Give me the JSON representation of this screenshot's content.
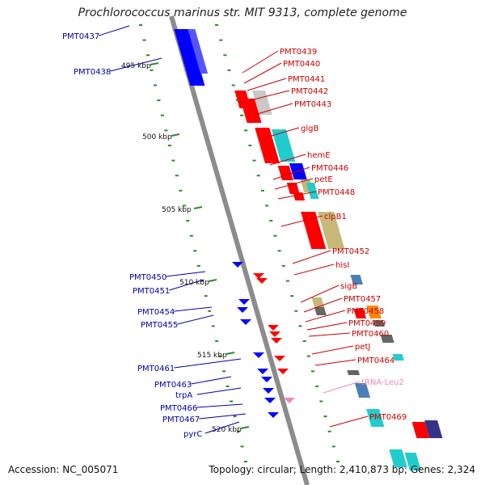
{
  "title": "Prochlorococcus marinus str. MIT 9313, complete genome",
  "accession": "Accession: NC_005071",
  "summary": "Topology: circular; Length: 2,410,873 bp; Genes: 2,324",
  "colors": {
    "backbone": "#8c8c8c",
    "forward": "#ff0000",
    "reverse": "#0000ff",
    "forward_label": "#cc0000",
    "reverse_label": "#0000aa",
    "rna_label": "#ee88bb",
    "tick_green": "#2a8a2a",
    "cyan": "#22cccc",
    "khaki": "#c8b878",
    "grey": "#666666",
    "steel": "#4a7fb5"
  },
  "ticks": [
    {
      "text": "495 kbp"
    },
    {
      "text": "500 kbp"
    },
    {
      "text": "505 kbp"
    },
    {
      "text": "510 kbp"
    },
    {
      "text": "515 kbp"
    },
    {
      "text": "520 kbp"
    }
  ],
  "labels_right": [
    {
      "text": "PMT0439",
      "kind": "cds"
    },
    {
      "text": "PMT0440",
      "kind": "cds"
    },
    {
      "text": "PMT0441",
      "kind": "cds"
    },
    {
      "text": "PMT0442",
      "kind": "cds"
    },
    {
      "text": "PMT0443",
      "kind": "cds"
    },
    {
      "text": "glgB",
      "kind": "cds"
    },
    {
      "text": "hemE",
      "kind": "cds"
    },
    {
      "text": "PMT0446",
      "kind": "cds"
    },
    {
      "text": "petE",
      "kind": "cds"
    },
    {
      "text": "PMT0448",
      "kind": "cds"
    },
    {
      "text": "clpB1",
      "kind": "cds"
    },
    {
      "text": "PMT0452",
      "kind": "cds"
    },
    {
      "text": "hisI",
      "kind": "cds"
    },
    {
      "text": "sigB",
      "kind": "cds"
    },
    {
      "text": "PMT0457",
      "kind": "cds"
    },
    {
      "text": "PMT0458",
      "kind": "cds"
    },
    {
      "text": "PMT0459",
      "kind": "cds"
    },
    {
      "text": "PMT0460",
      "kind": "cds"
    },
    {
      "text": "petJ",
      "kind": "cds"
    },
    {
      "text": "PMT0464",
      "kind": "cds"
    },
    {
      "text": "tRNA-Leu2",
      "kind": "rna"
    },
    {
      "text": "PMT0469",
      "kind": "cds"
    }
  ],
  "labels_left": [
    {
      "text": "PMT0437"
    },
    {
      "text": "PMT0438"
    },
    {
      "text": "PMT0450"
    },
    {
      "text": "PMT0451"
    },
    {
      "text": "PMT0454"
    },
    {
      "text": "PMT0455"
    },
    {
      "text": "PMT0461"
    },
    {
      "text": "PMT0463"
    },
    {
      "text": "trpA"
    },
    {
      "text": "PMT0466"
    },
    {
      "text": "PMT0467"
    },
    {
      "text": "pyrC"
    }
  ]
}
